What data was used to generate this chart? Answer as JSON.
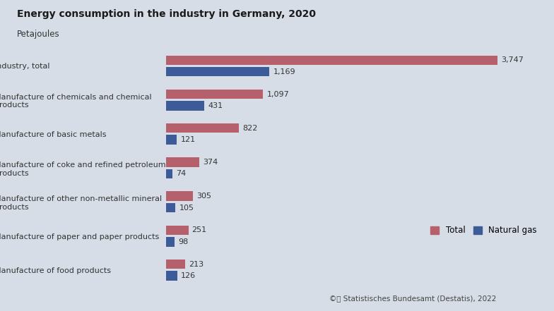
{
  "title": "Energy consumption in the industry in Germany, 2020",
  "subtitle": "Petajoules",
  "background_color": "#d6dde6",
  "categories": [
    "Industry, total",
    "Manufacture of chemicals and chemical\nproducts",
    "Manufacture of basic metals",
    "Manufacture of coke and refined petroleum\nproducts",
    "Manufacture of other non-metallic mineral\nproducts",
    "Manufacture of paper and paper products",
    "Manufacture of food products"
  ],
  "total_values": [
    3747,
    1097,
    822,
    374,
    305,
    251,
    213
  ],
  "gas_values": [
    1169,
    431,
    121,
    74,
    105,
    98,
    126
  ],
  "total_color": "#b5606a",
  "gas_color": "#3d5a99",
  "bar_height": 0.28,
  "bar_gap": 0.06,
  "xlim": [
    0,
    4200
  ],
  "legend_labels": [
    "Total",
    "Natural gas"
  ],
  "source_text": "© Statistisches Bundesamt (Destatis), 2022",
  "label_fontsize": 8,
  "title_fontsize": 10,
  "subtitle_fontsize": 8.5,
  "value_fontsize": 8
}
